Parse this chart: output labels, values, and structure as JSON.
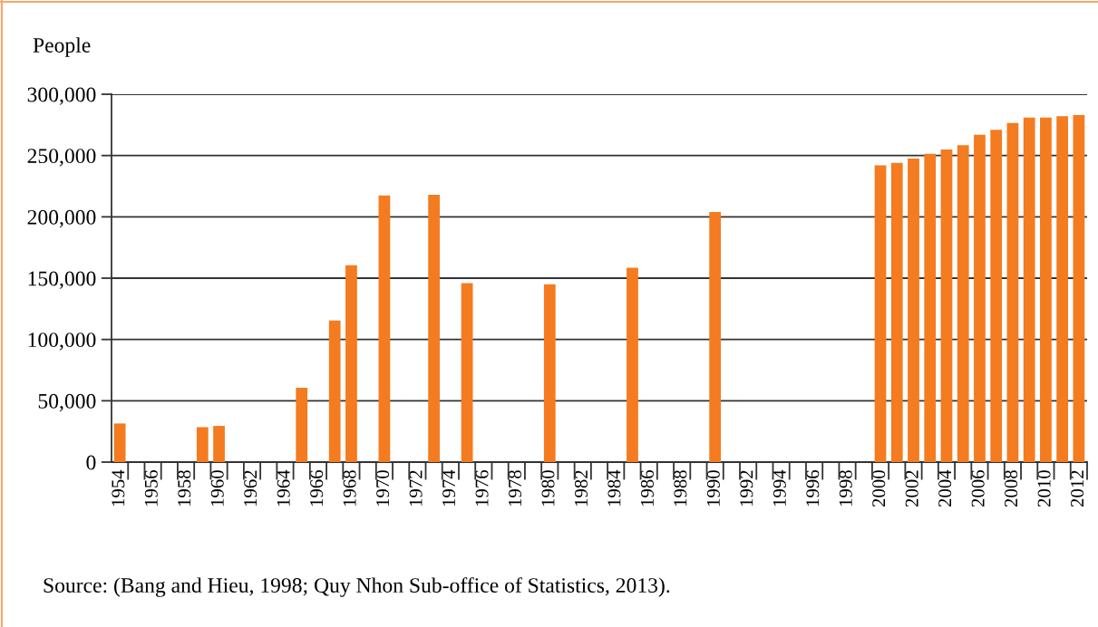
{
  "chart_data": {
    "type": "bar",
    "ylabel": "People",
    "categories": [
      "1954",
      null,
      "1956",
      null,
      "1958",
      null,
      "1960",
      null,
      "1962",
      null,
      "1964",
      null,
      "1966",
      null,
      "1968",
      null,
      "1970",
      null,
      "1972",
      null,
      "1974",
      null,
      "1976",
      null,
      "1978",
      null,
      "1980",
      null,
      "1982",
      null,
      "1984",
      null,
      "1986",
      null,
      "1988",
      null,
      "1990",
      null,
      "1992",
      null,
      "1994",
      null,
      "1996",
      null,
      "1998",
      null,
      "2000",
      null,
      "2002",
      null,
      "2004",
      null,
      "2006",
      null,
      "2008",
      null,
      "2010",
      null,
      "2012"
    ],
    "values": [
      31500,
      null,
      null,
      null,
      null,
      28500,
      29500,
      null,
      null,
      null,
      null,
      60500,
      null,
      115500,
      160500,
      null,
      217500,
      null,
      null,
      218000,
      null,
      146000,
      null,
      null,
      null,
      null,
      145000,
      null,
      null,
      null,
      null,
      158500,
      null,
      null,
      null,
      null,
      204000,
      null,
      null,
      null,
      null,
      null,
      null,
      null,
      null,
      null,
      242000,
      244000,
      247500,
      251500,
      255000,
      258500,
      267000,
      271000,
      276500,
      281000,
      281000,
      282000,
      283000
    ],
    "color": "#f47b20",
    "ylim": [
      0,
      300000
    ],
    "yticks": [
      0,
      {
        "value": 50000,
        "label": "50,000"
      },
      {
        "value": 100000,
        "label": "100,000"
      },
      {
        "value": 150000,
        "label": "150,000"
      },
      {
        "value": 200000,
        "label": "200,000"
      },
      {
        "value": 250000,
        "label": "250,000"
      },
      {
        "value": 300000,
        "label": "300,000"
      }
    ],
    "grid": "y",
    "annotations": [
      "Source: (Bang and Hieu, 1998; Quy Nhon Sub-office of Statistics, 2013)."
    ]
  }
}
